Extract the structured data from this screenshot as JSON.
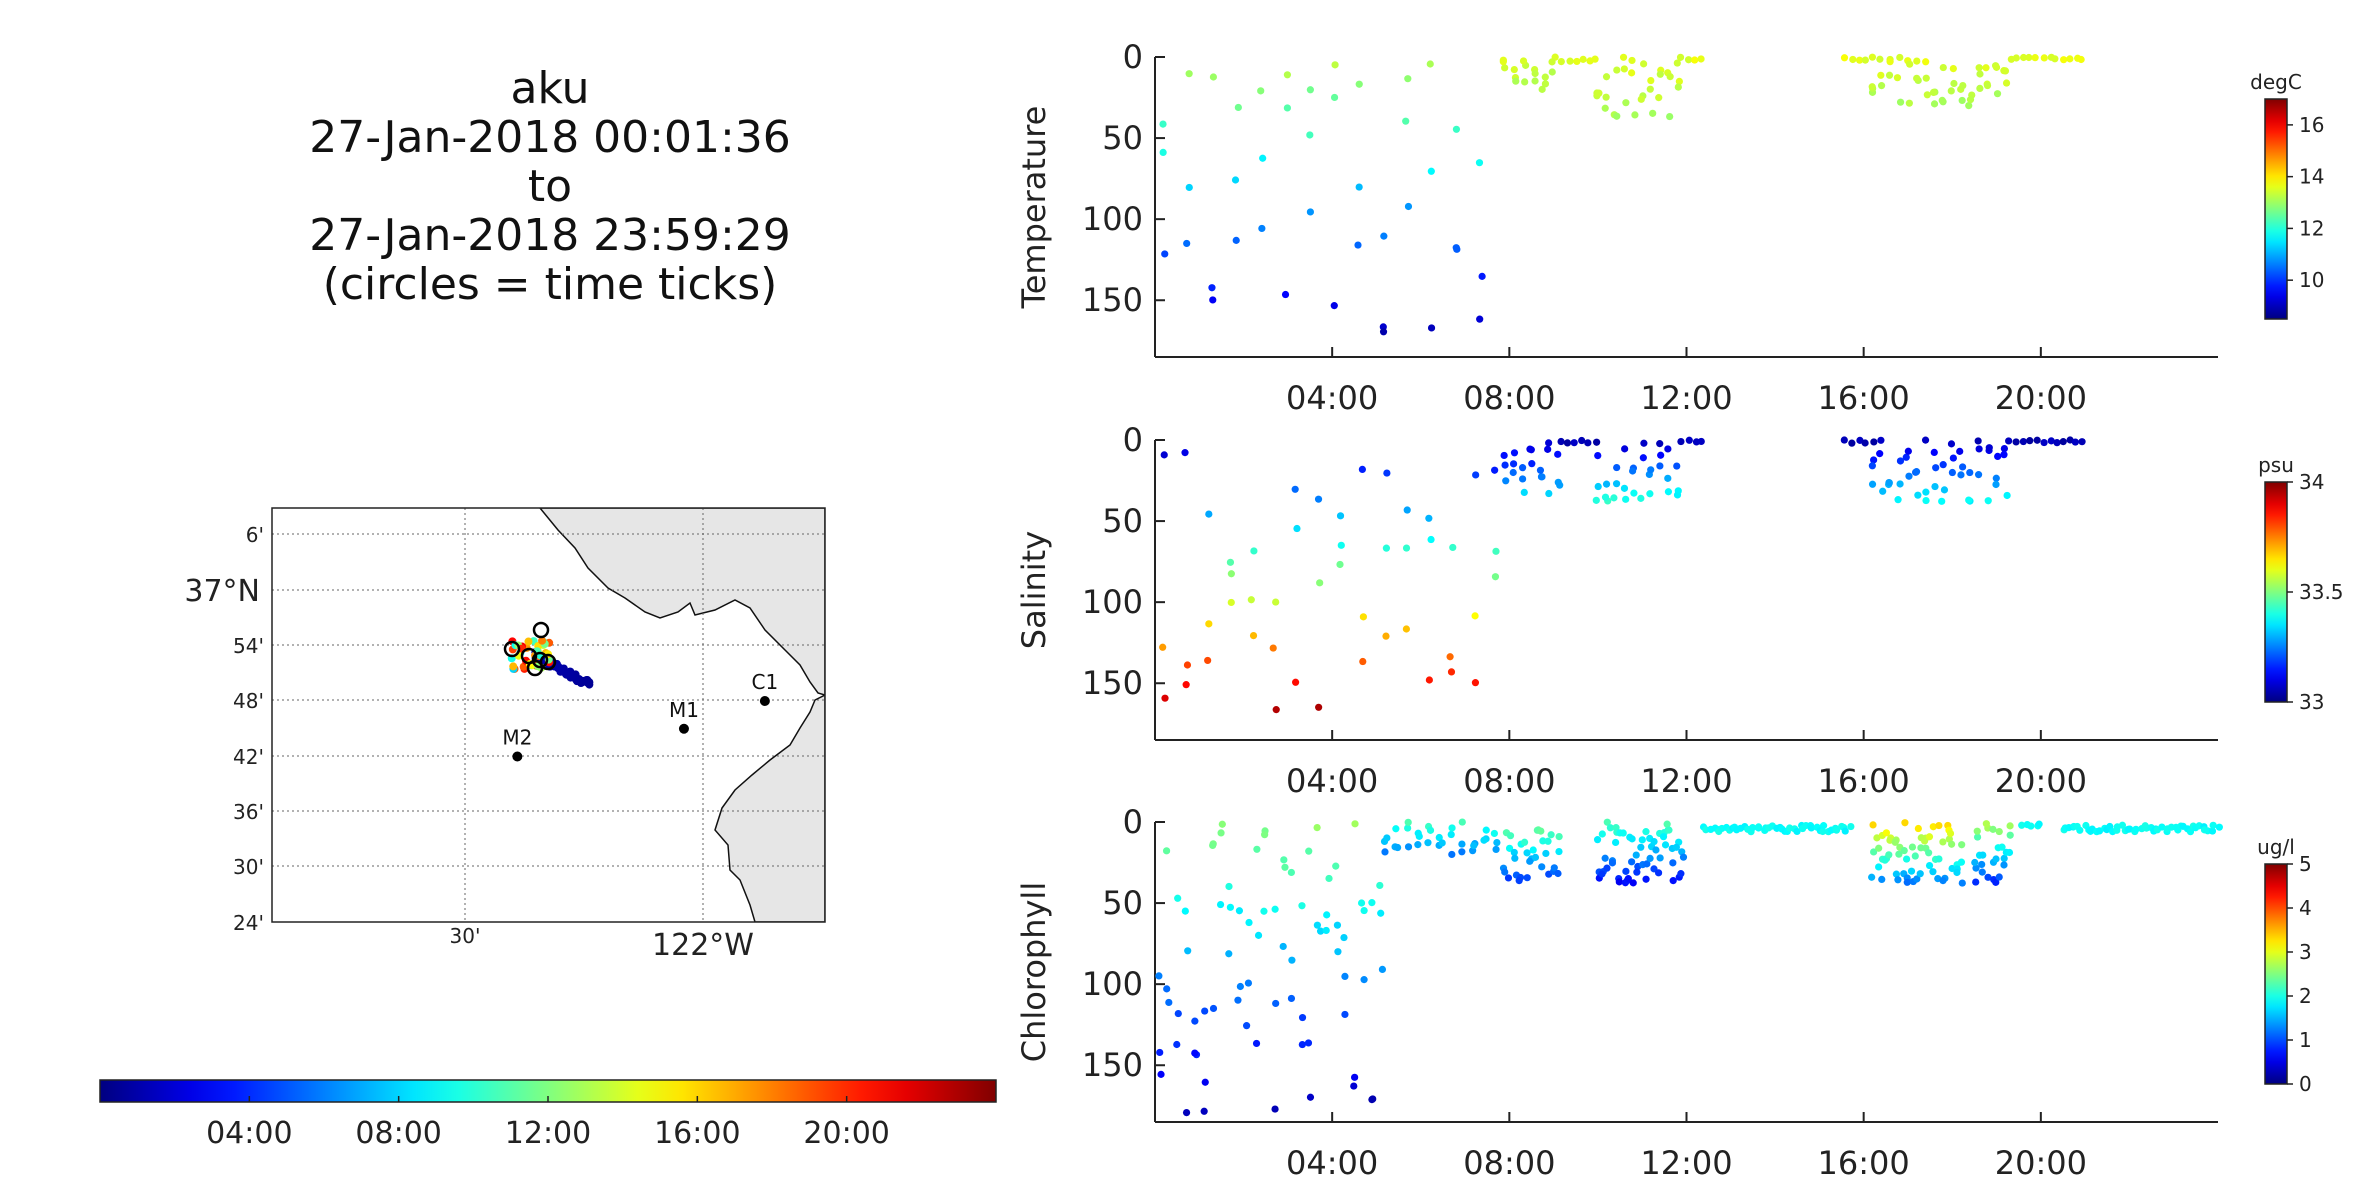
{
  "title": {
    "vehicle": "aku",
    "start": "27-Jan-2018 00:01:36",
    "joiner": "to",
    "end": "27-Jan-2018 23:59:29",
    "note": "(circles = time ticks)"
  },
  "map": {
    "lat_ticks": [
      "6'",
      "37°N",
      "54'",
      "48'",
      "42'",
      "36'",
      "30'",
      "24'"
    ],
    "lon_ticks": [
      "30'",
      "122°W"
    ],
    "stations": [
      {
        "name": "M1",
        "lon": -122.04,
        "lat": 36.75
      },
      {
        "name": "M2",
        "lon": -122.39,
        "lat": 36.7
      },
      {
        "name": "C1",
        "lon": -121.87,
        "lat": 36.8
      }
    ]
  },
  "time_colorbar": {
    "tick_labels": [
      "04:00",
      "08:00",
      "12:00",
      "16:00",
      "20:00"
    ],
    "colormap": "jet"
  },
  "chart_data": [
    {
      "type": "scatter",
      "ylabel": "Temperature",
      "colorbar_label": "degC",
      "colorbar_ticks": [
        "16",
        "14",
        "12",
        "10"
      ],
      "clim": [
        8.5,
        17
      ],
      "xlim": [
        0,
        24
      ],
      "ylim": [
        0,
        185
      ],
      "y_ticks": [
        "0",
        "50",
        "100",
        "150"
      ],
      "x_ticks": [
        "04:00",
        "08:00",
        "12:00",
        "16:00",
        "20:00"
      ],
      "x_unit": "hours of day",
      "y_unit": "depth (m)",
      "segments": [
        {
          "t0": 0.2,
          "t1": 7.8,
          "step": 0.55,
          "dmin": 0,
          "dmax": 170,
          "vshallow": 13.3,
          "vdeep": 9.0
        },
        {
          "t0": 7.9,
          "t1": 9.1,
          "step": 0.22,
          "dmin": 0,
          "dmax": 20,
          "vshallow": 13.5,
          "vdeep": 13.1
        },
        {
          "t0": 9.2,
          "t1": 10.0,
          "step": 0.15,
          "dmin": 0,
          "dmax": 3,
          "vshallow": 13.6,
          "vdeep": 13.5
        },
        {
          "t0": 10.0,
          "t1": 11.9,
          "step": 0.2,
          "dmin": 0,
          "dmax": 38,
          "vshallow": 13.6,
          "vdeep": 13.1
        },
        {
          "t0": 11.9,
          "t1": 12.4,
          "step": 0.15,
          "dmin": 0,
          "dmax": 2,
          "vshallow": 13.6,
          "vdeep": 13.6
        },
        {
          "t0": 15.6,
          "t1": 16.2,
          "step": 0.15,
          "dmin": 0,
          "dmax": 2,
          "vshallow": 13.6,
          "vdeep": 13.6
        },
        {
          "t0": 16.2,
          "t1": 19.3,
          "step": 0.2,
          "dmin": 0,
          "dmax": 30,
          "vshallow": 13.6,
          "vdeep": 13.1
        },
        {
          "t0": 19.3,
          "t1": 21.0,
          "step": 0.15,
          "dmin": 0,
          "dmax": 2,
          "vshallow": 13.6,
          "vdeep": 13.6
        }
      ]
    },
    {
      "type": "scatter",
      "ylabel": "Salinity",
      "colorbar_label": "psu",
      "colorbar_ticks": [
        "34",
        "33.5",
        "33"
      ],
      "clim": [
        33,
        34
      ],
      "xlim": [
        0,
        24
      ],
      "ylim": [
        0,
        185
      ],
      "y_ticks": [
        "0",
        "50",
        "100",
        "150"
      ],
      "x_ticks": [
        "04:00",
        "08:00",
        "12:00",
        "16:00",
        "20:00"
      ],
      "x_unit": "hours of day",
      "y_unit": "depth (m)",
      "segments": [
        {
          "t0": 0.2,
          "t1": 7.8,
          "step": 0.5,
          "dmin": 0,
          "dmax": 170,
          "vshallow": 33.05,
          "vdeep": 33.97
        },
        {
          "t0": 7.9,
          "t1": 9.1,
          "step": 0.2,
          "dmin": 0,
          "dmax": 35,
          "vshallow": 33.05,
          "vdeep": 33.35
        },
        {
          "t0": 9.2,
          "t1": 10.0,
          "step": 0.15,
          "dmin": 0,
          "dmax": 3,
          "vshallow": 33.05,
          "vdeep": 33.05
        },
        {
          "t0": 10.0,
          "t1": 11.9,
          "step": 0.2,
          "dmin": 0,
          "dmax": 38,
          "vshallow": 33.05,
          "vdeep": 33.42
        },
        {
          "t0": 11.9,
          "t1": 12.4,
          "step": 0.15,
          "dmin": 0,
          "dmax": 2,
          "vshallow": 33.05,
          "vdeep": 33.05
        },
        {
          "t0": 15.6,
          "t1": 16.2,
          "step": 0.15,
          "dmin": 0,
          "dmax": 2,
          "vshallow": 33.05,
          "vdeep": 33.05
        },
        {
          "t0": 16.2,
          "t1": 19.3,
          "step": 0.2,
          "dmin": 0,
          "dmax": 38,
          "vshallow": 33.05,
          "vdeep": 33.38
        },
        {
          "t0": 19.3,
          "t1": 21.0,
          "step": 0.15,
          "dmin": 0,
          "dmax": 2,
          "vshallow": 33.05,
          "vdeep": 33.05
        }
      ]
    },
    {
      "type": "scatter",
      "ylabel": "Chlorophyll",
      "colorbar_label": "ug/l",
      "colorbar_ticks": [
        "5",
        "4",
        "3",
        "2",
        "1",
        "0"
      ],
      "clim": [
        0,
        5
      ],
      "xlim": [
        0,
        24
      ],
      "ylim": [
        0,
        185
      ],
      "y_ticks": [
        "0",
        "50",
        "100",
        "150"
      ],
      "x_ticks": [
        "04:00",
        "08:00",
        "12:00",
        "16:00",
        "20:00"
      ],
      "x_unit": "hours of day",
      "y_unit": "depth (m)",
      "segments": [
        {
          "t0": 0.1,
          "t1": 5.2,
          "step": 0.2,
          "dmin": 0,
          "dmax": 180,
          "vshallow": 2.6,
          "vdeep": 0.2
        },
        {
          "t0": 5.2,
          "t1": 7.8,
          "step": 0.25,
          "dmin": 0,
          "dmax": 20,
          "vshallow": 2.2,
          "vdeep": 1.2
        },
        {
          "t0": 7.9,
          "t1": 9.1,
          "step": 0.12,
          "dmin": 0,
          "dmax": 38,
          "vshallow": 2.6,
          "vdeep": 0.8
        },
        {
          "t0": 10.0,
          "t1": 11.9,
          "step": 0.1,
          "dmin": 0,
          "dmax": 38,
          "vshallow": 2.3,
          "vdeep": 0.6
        },
        {
          "t0": 12.4,
          "t1": 15.7,
          "step": 0.07,
          "dmin": 2,
          "dmax": 6,
          "vshallow": 1.9,
          "vdeep": 1.9
        },
        {
          "t0": 16.2,
          "t1": 18.2,
          "step": 0.1,
          "dmin": 0,
          "dmax": 38,
          "vshallow": 3.4,
          "vdeep": 1.2
        },
        {
          "t0": 18.5,
          "t1": 19.3,
          "step": 0.1,
          "dmin": 0,
          "dmax": 38,
          "vshallow": 2.8,
          "vdeep": 0.8
        },
        {
          "t0": 19.6,
          "t1": 20.0,
          "step": 0.1,
          "dmin": 0,
          "dmax": 3,
          "vshallow": 1.9,
          "vdeep": 1.9
        },
        {
          "t0": 20.5,
          "t1": 24.0,
          "step": 0.07,
          "dmin": 2,
          "dmax": 6,
          "vshallow": 1.9,
          "vdeep": 1.9
        }
      ]
    }
  ]
}
